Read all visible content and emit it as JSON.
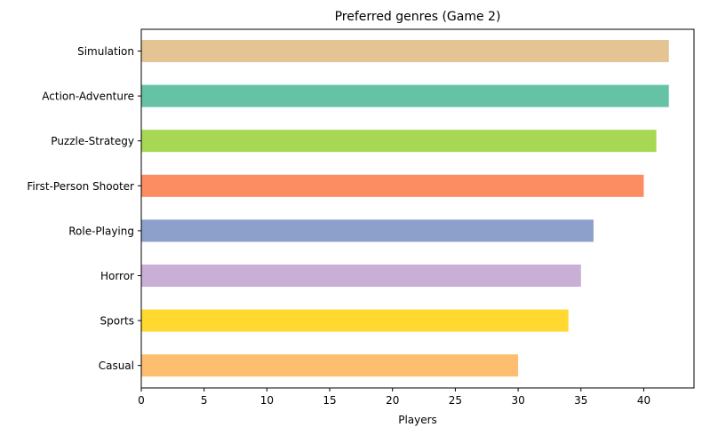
{
  "chart_data": {
    "type": "bar",
    "orientation": "horizontal",
    "title": "Preferred genres (Game 2)",
    "xlabel": "Players",
    "ylabel": "",
    "xlim": [
      0,
      44
    ],
    "xticks": [
      0,
      5,
      10,
      15,
      20,
      25,
      30,
      35,
      40
    ],
    "grid": false,
    "categories": [
      "Simulation",
      "Action-Adventure",
      "Puzzle-Strategy",
      "First-Person Shooter",
      "Role-Playing",
      "Horror",
      "Sports",
      "Casual"
    ],
    "values": [
      42,
      42,
      41,
      40,
      36,
      35,
      34,
      30
    ],
    "colors": [
      "#e5c494",
      "#66c2a5",
      "#a6d854",
      "#fc8d62",
      "#8da0cb",
      "#c9aed6",
      "#ffd92f",
      "#fdbf6f"
    ]
  }
}
